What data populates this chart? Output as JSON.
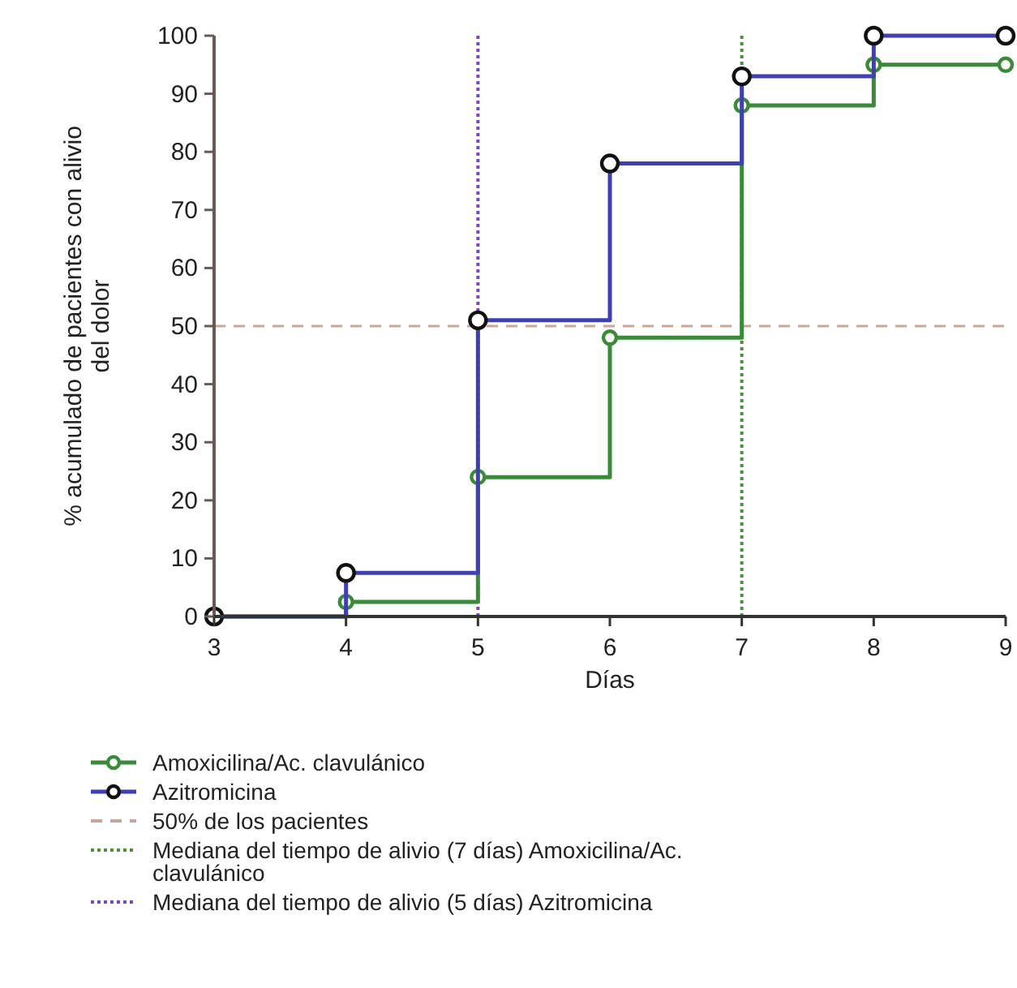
{
  "chart_data": {
    "type": "step",
    "xlabel": "Días",
    "ylabel": "% acumulado de pacientes con alivio del dolor",
    "x": [
      3,
      4,
      5,
      6,
      7,
      8,
      9
    ],
    "xlim": [
      3,
      9
    ],
    "xticks": [
      3,
      4,
      5,
      6,
      7,
      8,
      9
    ],
    "ylim": [
      0,
      100
    ],
    "yticks": [
      0,
      10,
      20,
      30,
      40,
      50,
      60,
      70,
      80,
      90,
      100
    ],
    "marker": "circle",
    "legend": "bottom",
    "grid": false,
    "series": [
      {
        "name": "Amoxicilina/Ac. clavulánico",
        "color": "#3a8a3a",
        "values": [
          0,
          2.5,
          24,
          48,
          88,
          95,
          95
        ]
      },
      {
        "name": "Azitromicina",
        "color": "#4040b0",
        "values": [
          0,
          7.5,
          51,
          78,
          93,
          100,
          100
        ]
      }
    ],
    "ref_lines": [
      {
        "axis": "y",
        "value": 50,
        "label": "50% de los pacientes",
        "color": "#c9a59a",
        "line_style": "dashed"
      },
      {
        "axis": "x",
        "value": 7,
        "label": "Mediana del tiempo de alivio (7 días) Amoxicilina/Ac. clavulánico",
        "color": "#4d8f3a",
        "line_style": "dotted"
      },
      {
        "axis": "x",
        "value": 5,
        "label": "Mediana del tiempo de alivio (5 días) Azitromicina",
        "color": "#7a4ab0",
        "line_style": "dotted"
      }
    ]
  }
}
